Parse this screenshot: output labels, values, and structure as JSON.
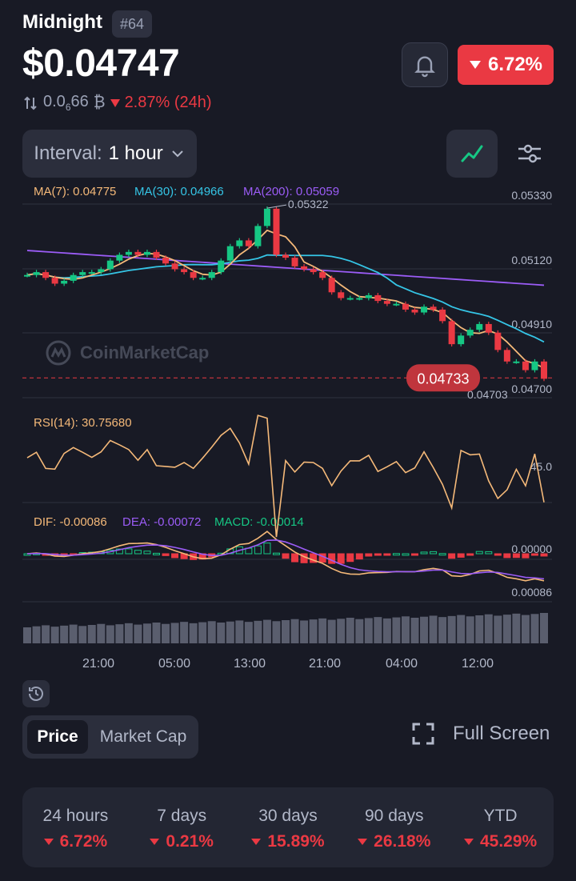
{
  "header": {
    "coin_name": "Midnight",
    "rank": "#64",
    "price": "$0.04747",
    "change_24h": "6.72%",
    "btc_price_prefix": "0.0",
    "btc_price_zeros": "6",
    "btc_price_suffix": "66",
    "btc_symbol": "₿",
    "btc_change": "2.87% (24h)"
  },
  "controls": {
    "interval_label": "Interval:",
    "interval_value": "1 hour"
  },
  "indicators": {
    "ma7": "MA(7): 0.04775",
    "ma30": "MA(30): 0.04966",
    "ma200": "MA(200): 0.05059",
    "rsi": "RSI(14): 30.75680",
    "dif": "DIF: -0.00086",
    "dea": "DEA: -0.00072",
    "macd": "MACD: -0.00014"
  },
  "colors": {
    "up": "#16c784",
    "down": "#ea3943",
    "ma7": "#f5b979",
    "ma30": "#35c5e6",
    "ma200": "#9b5cf6",
    "accent_text": "#b2b8c9"
  },
  "watermark": "CoinMarketCap",
  "chart_data": {
    "type": "candlestick",
    "price_axis_ticks": [
      "0.05330",
      "0.05120",
      "0.04910",
      "0.04700"
    ],
    "current_price_label": "0.04733",
    "high_marker": "0.05322",
    "low_marker": "0.04703",
    "rsi_tick": "45.0",
    "macd_ticks": [
      "0.00000",
      "0.00086"
    ],
    "x_ticks": [
      "21:00",
      "05:00",
      "13:00",
      "21:00",
      "04:00",
      "12:00"
    ],
    "close_prices": [
      0.0509,
      0.051,
      0.0508,
      0.0506,
      0.0507,
      0.0509,
      0.051,
      0.051,
      0.0511,
      0.0514,
      0.0516,
      0.0517,
      0.0516,
      0.0517,
      0.0515,
      0.0513,
      0.0511,
      0.051,
      0.0508,
      0.0508,
      0.051,
      0.0514,
      0.0519,
      0.0521,
      0.0519,
      0.0526,
      0.0532,
      0.0516,
      0.0515,
      0.0512,
      0.0511,
      0.051,
      0.0508,
      0.0503,
      0.0501,
      0.0501,
      0.0501,
      0.0502,
      0.05,
      0.0499,
      0.0499,
      0.0497,
      0.0496,
      0.0498,
      0.0497,
      0.0493,
      0.0485,
      0.0488,
      0.049,
      0.0492,
      0.0489,
      0.0483,
      0.0479,
      0.0479,
      0.0476,
      0.0479,
      0.0473
    ],
    "open_prices": [
      0.0509,
      0.0509,
      0.051,
      0.0508,
      0.0506,
      0.0507,
      0.0509,
      0.051,
      0.051,
      0.0511,
      0.0514,
      0.0516,
      0.0517,
      0.0516,
      0.0517,
      0.0515,
      0.0513,
      0.0511,
      0.051,
      0.0508,
      0.0508,
      0.051,
      0.0514,
      0.0519,
      0.0521,
      0.0519,
      0.0526,
      0.0532,
      0.0516,
      0.0515,
      0.0512,
      0.0511,
      0.051,
      0.0508,
      0.0503,
      0.0501,
      0.0501,
      0.0501,
      0.0502,
      0.05,
      0.0499,
      0.0499,
      0.0497,
      0.0496,
      0.0498,
      0.0497,
      0.0493,
      0.0485,
      0.0488,
      0.049,
      0.0492,
      0.0489,
      0.0483,
      0.0479,
      0.0479,
      0.0476,
      0.0479
    ],
    "y_range": [
      0.0467,
      0.0535
    ]
  },
  "bottom": {
    "toggle_price": "Price",
    "toggle_market_cap": "Market Cap",
    "full_screen": "Full Screen"
  },
  "performance": [
    {
      "period": "24 hours",
      "value": "6.72%"
    },
    {
      "period": "7 days",
      "value": "0.21%"
    },
    {
      "period": "30 days",
      "value": "15.89%"
    },
    {
      "period": "90 days",
      "value": "26.18%"
    },
    {
      "period": "YTD",
      "value": "45.29%"
    }
  ]
}
